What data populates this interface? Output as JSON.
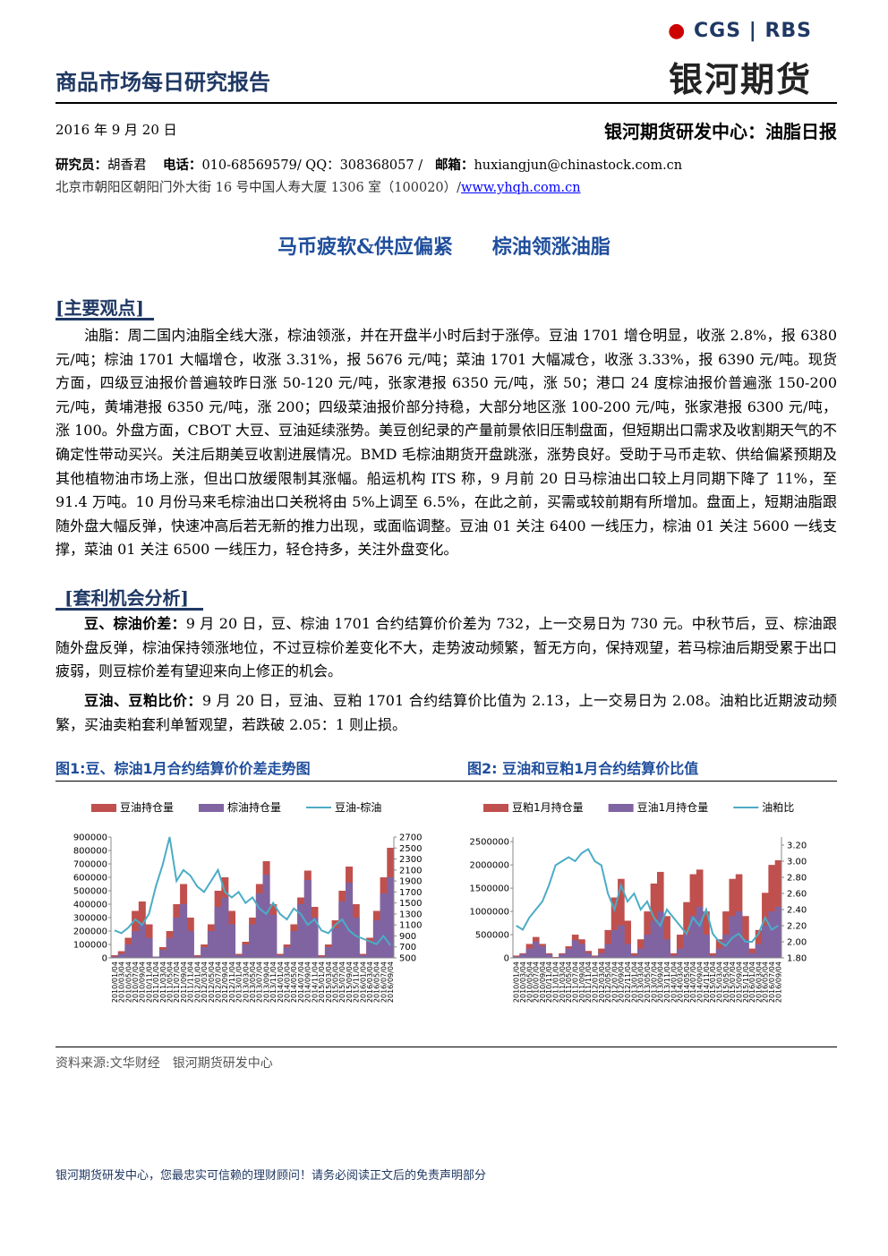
{
  "header": {
    "title": "商品市场每日研究报告",
    "logo_cgs": "CGS",
    "logo_rbs": "RBS",
    "brand": "银河期货",
    "date": "2016 年 9 月 20 日",
    "dept": "银河期货研发中心：油脂日报"
  },
  "contact": {
    "researcher_label": "研究员：",
    "researcher": "胡香君",
    "phone_label": "电话：",
    "phone": "010-68569579/ QQ：308368057 / ",
    "email_label": "邮箱：",
    "email": "huxiangjun@chinastock.com.cn",
    "address": "北京市朝阳区朝阳门外大街 16 号中国人寿大厦 1306 室（100020）/",
    "website": "www.yhqh.com.cn"
  },
  "headline": "马币疲软&供应偏紧　　棕油领涨油脂",
  "section1": {
    "heading": "[主要观点]",
    "paragraph": "油脂：周二国内油脂全线大涨，棕油领涨，并在开盘半小时后封于涨停。豆油 1701 增仓明显，收涨 2.8%，报 6380 元/吨；棕油 1701 大幅增仓，收涨 3.31%，报 5676 元/吨；菜油 1701 大幅减仓，收涨 3.33%，报 6390 元/吨。现货方面，四级豆油报价普遍较昨日涨 50-120 元/吨，张家港报 6350 元/吨，涨 50；港口 24 度棕油报价普遍涨 150-200 元/吨，黄埔港报 6350 元/吨，涨 200；四级菜油报价部分持稳，大部分地区涨 100-200 元/吨，张家港报 6300 元/吨，涨 100。外盘方面，CBOT 大豆、豆油延续涨势。美豆创纪录的产量前景依旧压制盘面，但短期出口需求及收割期天气的不确定性带动买兴。关注后期美豆收割进展情况。BMD 毛棕油期货开盘跳涨，涨势良好。受助于马币走软、供给偏紧预期及其他植物油市场上涨，但出口放缓限制其涨幅。船运机构 ITS 称，9 月前 20 日马棕油出口较上月同期下降了 11%，至 91.4 万吨。10 月份马来毛棕油出口关税将由 5%上调至 6.5%，在此之前，买需或较前期有所增加。盘面上，短期油脂跟随外盘大幅反弹，快速冲高后若无新的推力出现，或面临调整。豆油 01 关注 6400 一线压力，棕油 01 关注 5600 一线支撑，菜油 01 关注 6500 一线压力，轻仓持多，关注外盘变化。"
  },
  "section2": {
    "heading": "[套利机会分析]",
    "paragraphs": [
      {
        "label": "豆、棕油价差：",
        "text": "9 月 20 日，豆、棕油 1701 合约结算价价差为 732，上一交易日为 730 元。中秋节后，豆、棕油跟随外盘反弹，棕油保持领涨地位，不过豆棕价差变化不大，走势波动频繁，暂无方向，保持观望，若马棕油后期受累于出口疲弱，则豆棕价差有望迎来向上修正的机会。"
      },
      {
        "label": "豆油、豆粕比价：",
        "text": "9 月 20 日，豆油、豆粕 1701 合约结算价比值为 2.13，上一交易日为 2.08。油粕比近期波动频繁，买油卖粕套利单暂观望，若跌破 2.05：1 则止损。"
      }
    ]
  },
  "chart_data": [
    {
      "type": "combo",
      "title": "图1:豆、棕油1月合约结算价价差走势图",
      "categories": [
        "2010/01/04",
        "2010/03/04",
        "2010/05/04",
        "2010/07/04",
        "2010/09/04",
        "2010/11/04",
        "2011/01/04",
        "2011/03/04",
        "2011/05/04",
        "2011/07/04",
        "2011/09/04",
        "2011/11/04",
        "2012/01/04",
        "2012/03/04",
        "2012/05/04",
        "2012/07/04",
        "2012/09/04",
        "2012/11/04",
        "2013/01/04",
        "2013/03/04",
        "2013/05/04",
        "2013/07/04",
        "2013/09/04",
        "2013/11/04",
        "2014/01/04",
        "2014/03/04",
        "2014/05/04",
        "2014/07/04",
        "2014/09/04",
        "2014/11/04",
        "2015/01/04",
        "2015/03/04",
        "2015/05/04",
        "2015/07/04",
        "2015/09/04",
        "2015/11/04",
        "2016/01/04",
        "2016/03/04",
        "2016/05/04",
        "2016/07/04",
        "2016/09/04"
      ],
      "series": [
        {
          "name": "豆油持仓量",
          "kind": "bar",
          "color": "#c0504d",
          "values": [
            20000,
            50000,
            150000,
            350000,
            420000,
            250000,
            10000,
            80000,
            200000,
            400000,
            550000,
            300000,
            20000,
            100000,
            250000,
            500000,
            600000,
            350000,
            30000,
            120000,
            300000,
            550000,
            720000,
            400000,
            30000,
            100000,
            250000,
            450000,
            650000,
            380000,
            20000,
            100000,
            280000,
            500000,
            680000,
            400000,
            30000,
            150000,
            350000,
            600000,
            820000
          ]
        },
        {
          "name": "棕油持仓量",
          "kind": "bar",
          "color": "#8064a2",
          "values": [
            10000,
            30000,
            100000,
            200000,
            250000,
            150000,
            10000,
            60000,
            150000,
            300000,
            400000,
            200000,
            10000,
            80000,
            200000,
            380000,
            450000,
            250000,
            20000,
            100000,
            250000,
            480000,
            620000,
            320000,
            20000,
            80000,
            200000,
            400000,
            580000,
            300000,
            10000,
            80000,
            220000,
            420000,
            560000,
            300000,
            20000,
            120000,
            280000,
            480000,
            600000
          ]
        },
        {
          "name": "豆油-棕油",
          "kind": "line",
          "axis": "y2",
          "color": "#4bacc6",
          "values": [
            1000,
            950,
            1050,
            1200,
            1100,
            1300,
            1800,
            2200,
            2700,
            1900,
            2100,
            2000,
            1800,
            1700,
            1900,
            2100,
            1700,
            1600,
            1700,
            1500,
            1600,
            1400,
            1300,
            1500,
            1300,
            1200,
            1400,
            1300,
            1100,
            1200,
            1000,
            950,
            1100,
            1200,
            1000,
            900,
            850,
            800,
            750,
            900,
            730
          ]
        }
      ],
      "ylim": [
        0,
        900000
      ],
      "yticks": [
        0,
        100000,
        200000,
        300000,
        400000,
        500000,
        600000,
        700000,
        800000,
        900000
      ],
      "y2lim": [
        500,
        2700
      ],
      "y2ticks": [
        500,
        700,
        900,
        1100,
        1300,
        1500,
        1700,
        1900,
        2100,
        2300,
        2500,
        2700
      ]
    },
    {
      "type": "combo",
      "title": "图2: 豆油和豆粕1月合约结算价比值",
      "categories": [
        "2010/01/04",
        "2010/03/04",
        "2010/05/04",
        "2010/07/04",
        "2010/09/04",
        "2010/11/04",
        "2011/01/04",
        "2011/03/04",
        "2011/05/04",
        "2011/07/04",
        "2011/09/04",
        "2011/11/04",
        "2012/01/04",
        "2012/03/04",
        "2012/05/04",
        "2012/07/04",
        "2012/09/04",
        "2012/11/04",
        "2013/01/04",
        "2013/03/04",
        "2013/05/04",
        "2013/07/04",
        "2013/09/04",
        "2013/11/04",
        "2014/01/04",
        "2014/03/04",
        "2014/05/04",
        "2014/07/04",
        "2014/09/04",
        "2014/11/04",
        "2015/01/04",
        "2015/03/04",
        "2015/05/04",
        "2015/07/04",
        "2015/09/04",
        "2015/11/04",
        "2016/01/04",
        "2016/03/04",
        "2016/05/04",
        "2016/07/04",
        "2016/09/04"
      ],
      "series": [
        {
          "name": "豆粕1月持仓量",
          "kind": "bar",
          "color": "#c0504d",
          "values": [
            50000,
            100000,
            300000,
            450000,
            300000,
            100000,
            20000,
            100000,
            250000,
            500000,
            400000,
            150000,
            50000,
            200000,
            600000,
            1300000,
            1700000,
            800000,
            100000,
            400000,
            1000000,
            1600000,
            1850000,
            900000,
            100000,
            500000,
            1200000,
            1800000,
            1900000,
            1000000,
            100000,
            400000,
            1000000,
            1700000,
            1800000,
            900000,
            200000,
            600000,
            1400000,
            2000000,
            2100000
          ]
        },
        {
          "name": "豆油1月持仓量",
          "kind": "bar",
          "color": "#8064a2",
          "values": [
            30000,
            80000,
            200000,
            350000,
            250000,
            80000,
            10000,
            80000,
            200000,
            380000,
            300000,
            100000,
            30000,
            100000,
            300000,
            600000,
            700000,
            300000,
            50000,
            200000,
            500000,
            800000,
            1000000,
            400000,
            50000,
            200000,
            500000,
            900000,
            1100000,
            500000,
            50000,
            200000,
            500000,
            900000,
            1000000,
            400000,
            100000,
            300000,
            700000,
            1000000,
            1100000
          ]
        },
        {
          "name": "油粕比",
          "kind": "line",
          "axis": "y2",
          "color": "#4bacc6",
          "values": [
            2.2,
            2.15,
            2.3,
            2.4,
            2.5,
            2.7,
            2.95,
            3,
            3.05,
            3,
            3.1,
            3.15,
            3,
            2.95,
            2.6,
            2.4,
            2.7,
            2.5,
            2.6,
            2.4,
            2.5,
            2.3,
            2.2,
            2.4,
            2.3,
            2.2,
            2.1,
            2.3,
            2.2,
            2.4,
            2.1,
            2,
            1.95,
            2.05,
            2.1,
            2,
            2,
            2.1,
            2.3,
            2.15,
            2.2
          ]
        }
      ],
      "ylim": [
        0,
        2600000
      ],
      "yticks": [
        0,
        500000,
        1000000,
        1500000,
        2000000,
        2500000
      ],
      "y2lim": [
        1.8,
        3.3
      ],
      "y2ticks": [
        {
          "value": 1.8,
          "label": "1.80"
        },
        {
          "value": 2,
          "label": "2.00"
        },
        {
          "value": 2.2,
          "label": "2.20"
        },
        {
          "value": 2.4,
          "label": "2.40"
        },
        {
          "value": 2.6,
          "label": "2.60"
        },
        {
          "value": 2.8,
          "label": "2.80"
        },
        {
          "value": 3,
          "label": "3.00"
        },
        {
          "value": 3.2,
          "label": "3.20"
        }
      ]
    }
  ],
  "source": "资料来源:文华财经　银河期货研发中心",
  "footer": "银河期货研发中心，您最忠实可信赖的理财顾问！请务必阅读正文后的免责声明部分"
}
